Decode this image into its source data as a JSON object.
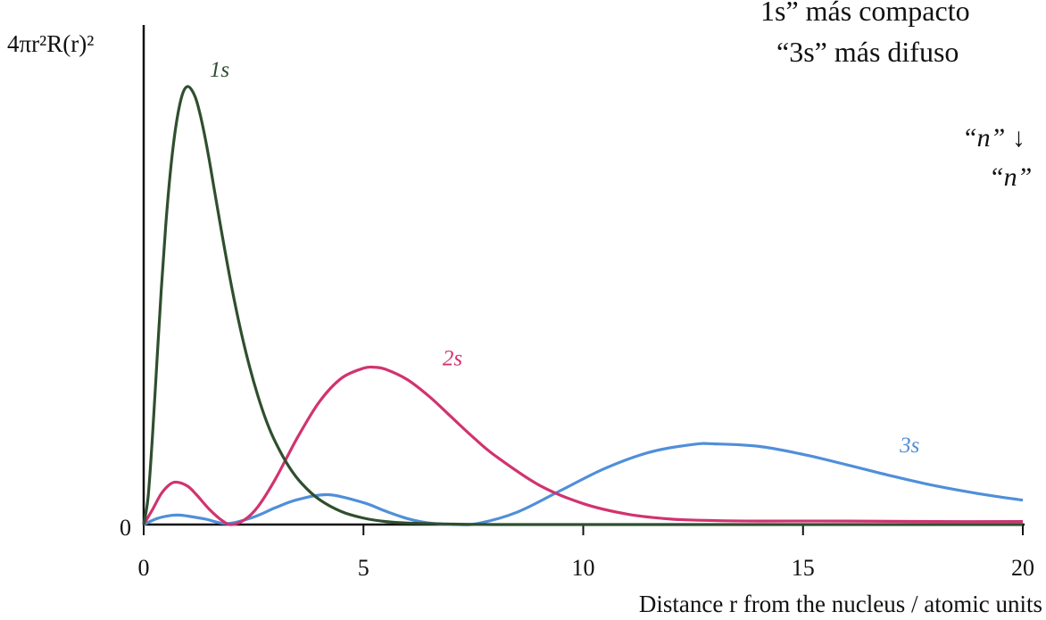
{
  "annotations": {
    "line1": "1s” más compacto",
    "line2": "“3s” más difuso",
    "line3": "“n” ↓",
    "line4": "“n”"
  },
  "chart_data": {
    "type": "line",
    "title": "",
    "xlabel": "Distance r from the nucleus / atomic units",
    "ylabel": "4πr²R(r)²",
    "xlim": [
      0,
      20
    ],
    "ylim": [
      0,
      1.0
    ],
    "x_ticks": [
      "0",
      "5",
      "10",
      "15",
      "20"
    ],
    "y_ticks": [
      "0"
    ],
    "grid": false,
    "legend": "labels on curves",
    "series": [
      {
        "name": "1s",
        "color": "#2f4f2f",
        "x": [
          0,
          0.1,
          0.2,
          0.3,
          0.4,
          0.5,
          0.6,
          0.7,
          0.8,
          0.9,
          1.0,
          1.1,
          1.2,
          1.3,
          1.4,
          1.5,
          1.6,
          1.8,
          2.0,
          2.2,
          2.4,
          2.6,
          2.8,
          3.0,
          3.3,
          3.6,
          4.0,
          4.5,
          5.0,
          5.5,
          6.0,
          7.0,
          8.0,
          10.0,
          12.0,
          15.0,
          20.0
        ],
        "values": [
          0,
          0.055,
          0.178,
          0.326,
          0.472,
          0.599,
          0.702,
          0.78,
          0.835,
          0.869,
          0.88,
          0.872,
          0.852,
          0.818,
          0.776,
          0.728,
          0.676,
          0.574,
          0.478,
          0.393,
          0.32,
          0.258,
          0.206,
          0.165,
          0.117,
          0.082,
          0.05,
          0.026,
          0.013,
          0.006,
          0.003,
          0.001,
          0.0,
          0.0,
          0.0,
          0.0,
          0.0
        ]
      },
      {
        "name": "2s",
        "color": "#d1336f",
        "x": [
          0,
          0.2,
          0.4,
          0.6,
          0.76,
          1.0,
          1.2,
          1.5,
          1.8,
          2.0,
          2.3,
          2.6,
          3.0,
          3.5,
          4.0,
          4.5,
          5.0,
          5.24,
          5.5,
          6.0,
          6.5,
          7.0,
          7.5,
          8.0,
          9.0,
          10.0,
          11.0,
          12.0,
          13.0,
          14.0,
          16.0,
          18.0,
          20.0
        ],
        "values": [
          0,
          0.03,
          0.062,
          0.081,
          0.085,
          0.077,
          0.06,
          0.03,
          0.007,
          0.0,
          0.01,
          0.036,
          0.092,
          0.175,
          0.247,
          0.294,
          0.314,
          0.316,
          0.312,
          0.291,
          0.257,
          0.216,
          0.175,
          0.138,
          0.079,
          0.042,
          0.021,
          0.011,
          0.008,
          0.007,
          0.007,
          0.006,
          0.006
        ]
      },
      {
        "name": "3s",
        "color": "#4f8fd9",
        "x": [
          0,
          0.3,
          0.6,
          0.8,
          1.0,
          1.4,
          1.9,
          2.5,
          3.0,
          3.5,
          4.2,
          5.0,
          5.5,
          6.0,
          6.5,
          7.1,
          7.6,
          8.5,
          9.5,
          10.5,
          11.5,
          12.5,
          13.0,
          14.0,
          15.0,
          16.0,
          17.0,
          18.0,
          19.0,
          20.0
        ],
        "values": [
          0,
          0.012,
          0.018,
          0.019,
          0.017,
          0.011,
          0.002,
          0.015,
          0.034,
          0.05,
          0.06,
          0.044,
          0.027,
          0.012,
          0.003,
          0.0,
          0.002,
          0.025,
          0.069,
          0.113,
          0.145,
          0.161,
          0.162,
          0.157,
          0.141,
          0.12,
          0.098,
          0.078,
          0.062,
          0.049
        ]
      }
    ]
  }
}
